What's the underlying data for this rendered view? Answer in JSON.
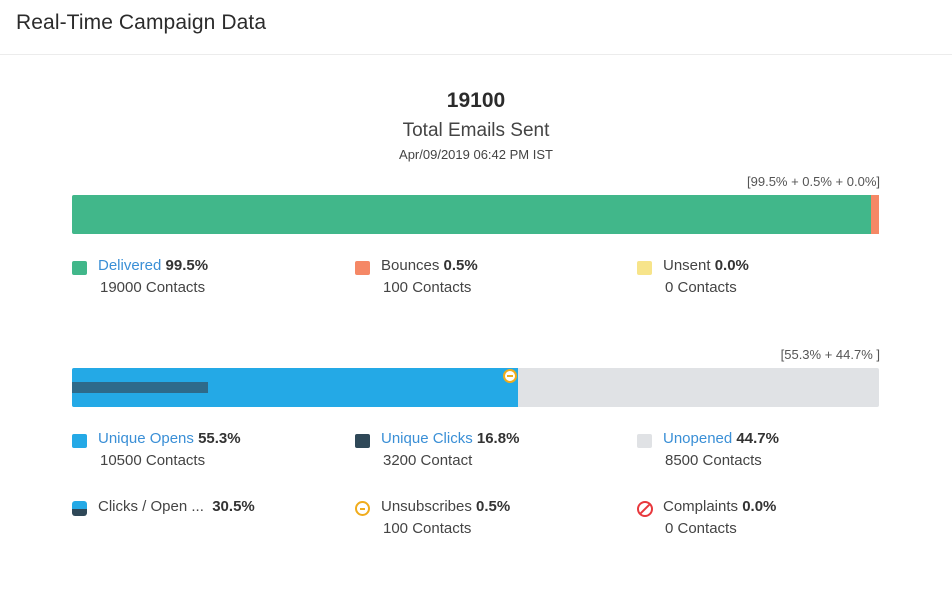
{
  "header": {
    "title": "Real-Time Campaign Data"
  },
  "summary": {
    "total_value": "19100",
    "total_label": "Total Emails Sent",
    "timestamp": "Apr/09/2019 06:42 PM IST"
  },
  "delivery_bar": {
    "caption": "[99.5% + 0.5% + 0.0%]",
    "delivered_pct": 99.5,
    "bounce_pct": 0.5,
    "unsent_pct": 0.0
  },
  "engagement_bar": {
    "caption": "[55.3% + 44.7% ]",
    "opens_pct": 55.3,
    "clicks_pct": 16.8,
    "unsubscribe_pct": 0.5
  },
  "colors": {
    "delivered": "#41b78a",
    "bounces": "#f58866",
    "unsent": "#f7e48a",
    "unique_opens": "#24a9e6",
    "unique_clicks": "#2f4858",
    "unopened": "#e0e2e5",
    "unsubscribes": "#f0ac1c",
    "complaints": "#e8383d",
    "link": "#3a8fd6"
  },
  "delivery_legend": {
    "delivered": {
      "label": "Delivered",
      "pct": "99.5%",
      "count": "19000 Contacts"
    },
    "bounces": {
      "label": "Bounces",
      "pct": "0.5%",
      "count": "100 Contacts"
    },
    "unsent": {
      "label": "Unsent",
      "pct": "0.0%",
      "count": "0 Contacts"
    }
  },
  "engagement_legend": {
    "unique_opens": {
      "label": "Unique Opens",
      "pct": "55.3%",
      "count": "10500 Contacts"
    },
    "unique_clicks": {
      "label": "Unique Clicks",
      "pct": "16.8%",
      "count": "3200 Contact"
    },
    "unopened": {
      "label": "Unopened",
      "pct": "44.7%",
      "count": "8500 Contacts"
    },
    "clicks_open": {
      "label": "Clicks / Open ...",
      "pct": "30.5%",
      "icon": "split-square-icon"
    },
    "unsubscribes": {
      "label": "Unsubscribes",
      "pct": "0.5%",
      "count": "100 Contacts",
      "icon": "minus-circle-icon"
    },
    "complaints": {
      "label": "Complaints",
      "pct": "0.0%",
      "count": "0 Contacts",
      "icon": "prohibited-icon"
    }
  }
}
